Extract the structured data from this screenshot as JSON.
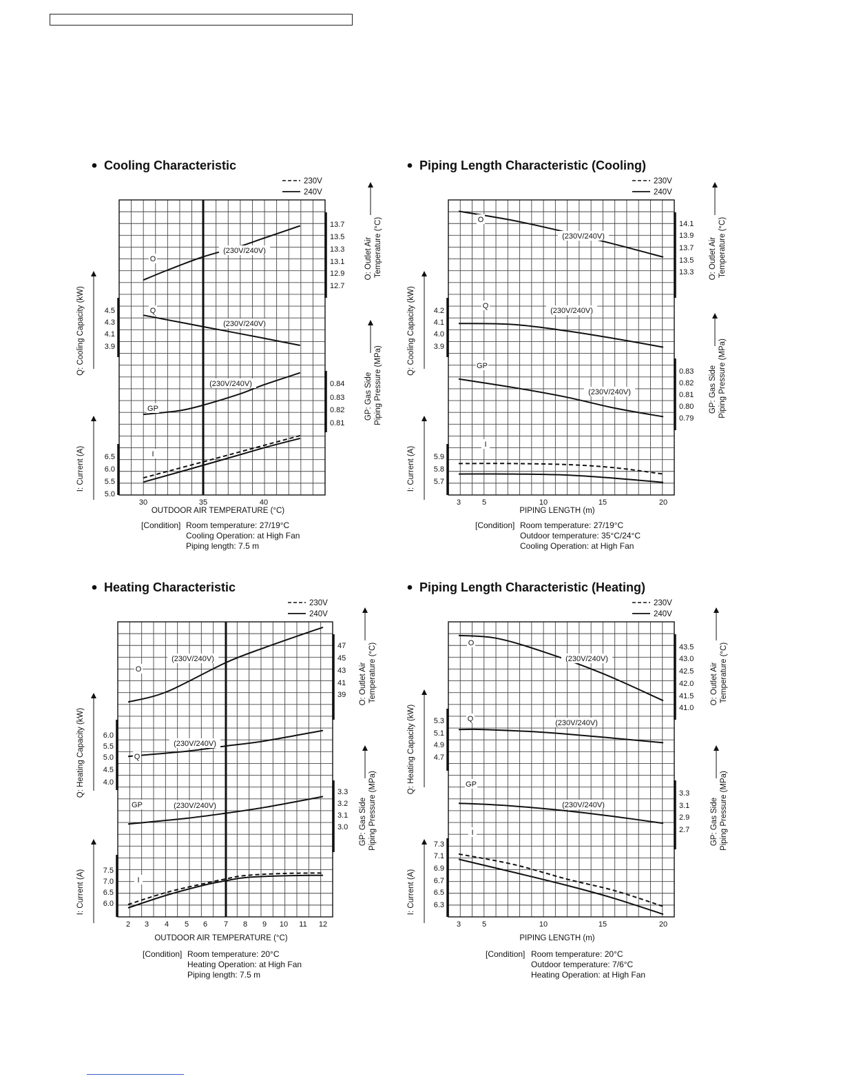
{
  "charts": [
    {
      "title": "Cooling Characteristic",
      "legend": [
        "230V",
        "240V"
      ],
      "x_axis": {
        "label": "OUTDOOR AIR TEMPERATURE (°C)",
        "ticks": [
          30,
          35,
          40
        ]
      },
      "condition_label": "[Condition]",
      "condition_lines": [
        "Room temperature: 27/19°C",
        "Cooling Operation: at High Fan",
        "Piping length: 7.5 m"
      ],
      "right_axes": [
        {
          "label": "O: Outlet Air Temperature (°C)",
          "lines": [
            "O: Outlet Air",
            "Temperature (°C)"
          ],
          "ticks": [
            "13.7",
            "13.5",
            "13.3",
            "13.1",
            "12.9",
            "12.7"
          ]
        },
        {
          "label": "GP: Gas Side Piping Pressure (MPa)",
          "lines": [
            "GP: Gas Side",
            "Piping Pressure (MPa)"
          ],
          "ticks": [
            "0.84",
            "0.83",
            "0.82",
            "0.81"
          ]
        }
      ],
      "left_axes": [
        {
          "label": "Q: Cooling Capacity (kW)",
          "ticks": [
            "4.5",
            "4.3",
            "4.1",
            "3.9"
          ]
        },
        {
          "label": "I: Current (A)",
          "ticks": [
            "6.5",
            "6.0",
            "5.5",
            "5.0"
          ]
        }
      ],
      "curve_labels": [
        "O",
        "(230V/240V)",
        "Q",
        "(230V/240V)",
        "GP",
        "(230V/240V)",
        "I"
      ]
    },
    {
      "title": "Piping Length Characteristic (Cooling)",
      "legend": [
        "230V",
        "240V"
      ],
      "x_axis": {
        "label": "PIPING LENGTH (m)",
        "ticks": [
          3,
          5,
          10,
          15,
          20
        ]
      },
      "condition_label": "[Condition]",
      "condition_lines": [
        "Room temperature: 27/19°C",
        "Outdoor temperature: 35°C/24°C",
        "Cooling Operation: at High Fan"
      ],
      "right_axes": [
        {
          "label": "O: Outlet Air Temperature (°C)",
          "lines": [
            "O: Outlet Air",
            "Temperature (°C)"
          ],
          "ticks": [
            "14.1",
            "13.9",
            "13.7",
            "13.5",
            "13.3"
          ]
        },
        {
          "label": "GP: Gas Side Piping Pressure (MPa)",
          "lines": [
            "GP: Gas Side",
            "Piping Pressure (MPa)"
          ],
          "ticks": [
            "0.83",
            "0.82",
            "0.81",
            "0.80",
            "0.79"
          ]
        }
      ],
      "left_axes": [
        {
          "label": "Q: Cooling Capacity (kW)",
          "ticks": [
            "4.2",
            "4.1",
            "4.0",
            "3.9"
          ]
        },
        {
          "label": "I: Current (A)",
          "ticks": [
            "5.9",
            "5.8",
            "5.7"
          ]
        }
      ],
      "curve_labels": [
        "O",
        "(230V/240V)",
        "Q",
        "(230V/240V)",
        "GP",
        "(230V/240V)",
        "I"
      ]
    },
    {
      "title": "Heating Characteristic",
      "legend": [
        "230V",
        "240V"
      ],
      "x_axis": {
        "label": "OUTDOOR AIR TEMPERATURE (°C)",
        "ticks": [
          2,
          3,
          4,
          5,
          6,
          7,
          8,
          9,
          10,
          11,
          12
        ]
      },
      "condition_label": "[Condition]",
      "condition_lines": [
        "Room temperature: 20°C",
        "Heating Operation: at High Fan",
        "Piping length: 7.5 m"
      ],
      "right_axes": [
        {
          "label": "O: Outlet Air Temperature (°C)",
          "lines": [
            "O: Outlet Air",
            "Temperature (°C)"
          ],
          "ticks": [
            "47",
            "45",
            "43",
            "41",
            "39"
          ]
        },
        {
          "label": "GP: Gas Side Piping Pressure (MPa)",
          "lines": [
            "GP: Gas Side",
            "Piping Pressure (MPa)"
          ],
          "ticks": [
            "3.3",
            "3.2",
            "3.1",
            "3.0"
          ]
        }
      ],
      "left_axes": [
        {
          "label": "Q: Heating Capacity (kW)",
          "ticks": [
            "6.0",
            "5.5",
            "5.0",
            "4.5",
            "4.0"
          ]
        },
        {
          "label": "I: Current (A)",
          "ticks": [
            "7.5",
            "7.0",
            "6.5",
            "6.0"
          ]
        }
      ],
      "curve_labels": [
        "(230V/240V)",
        "O",
        "(230V/240V)",
        "Q",
        "GP",
        "(230V/240V)",
        "I"
      ]
    },
    {
      "title": "Piping Length Characteristic (Heating)",
      "legend": [
        "230V",
        "240V"
      ],
      "x_axis": {
        "label": "PIPING LENGTH (m)",
        "ticks": [
          3,
          5,
          10,
          15,
          20
        ]
      },
      "condition_label": "[Condition]",
      "condition_lines": [
        "Room temperature: 20°C",
        "Outdoor temperature: 7/6°C",
        "Heating Operation: at High Fan"
      ],
      "right_axes": [
        {
          "label": "O: Outlet Air Temperature (°C)",
          "lines": [
            "O: Outlet Air",
            "Temperature (°C)"
          ],
          "ticks": [
            "43.5",
            "43.0",
            "42.5",
            "42.0",
            "41.5",
            "41.0"
          ]
        },
        {
          "label": "GP: Gas Side Piping Pressure (MPa)",
          "lines": [
            "GP: Gas Side",
            "Piping Pressure (MPa)"
          ],
          "ticks": [
            "3.3",
            "3.1",
            "2.9",
            "2.7"
          ]
        }
      ],
      "left_axes": [
        {
          "label": "Q: Heating Capacity (kW)",
          "ticks": [
            "5.3",
            "5.1",
            "4.9",
            "4.7"
          ]
        },
        {
          "label": "I: Current (A)",
          "ticks": [
            "7.3",
            "7.1",
            "6.9",
            "6.7",
            "6.5",
            "6.3"
          ]
        }
      ],
      "curve_labels": [
        "O",
        "(230V/240V)",
        "Q",
        "(230V/240V)",
        "GP",
        "(230V/240V)",
        "I"
      ]
    }
  ],
  "chart_data": [
    {
      "type": "line",
      "title": "Cooling Characteristic",
      "xlabel": "OUTDOOR AIR TEMPERATURE (°C)",
      "xlim": [
        28,
        45
      ],
      "series": [
        {
          "name": "O",
          "axis": "O: Outlet Air Temperature (°C)",
          "ylim": [
            12.4,
            14.4
          ],
          "x": [
            30,
            32,
            35,
            38,
            40,
            43
          ],
          "y": [
            12.85,
            13.04,
            13.3,
            13.5,
            13.66,
            13.9
          ]
        },
        {
          "name": "Q",
          "axis": "Q: Cooling Capacity (kW)",
          "ylim": [
            3.7,
            4.6
          ],
          "x": [
            30,
            35,
            40,
            43
          ],
          "y": [
            4.34,
            4.18,
            4.02,
            3.92
          ]
        },
        {
          "name": "GP",
          "axis": "GP: Gas Side Piping Pressure (MPa)",
          "ylim": [
            0.79,
            0.86
          ],
          "x": [
            30,
            33,
            35,
            38,
            40,
            43
          ],
          "y": [
            0.81,
            0.814,
            0.82,
            0.832,
            0.842,
            0.855
          ]
        },
        {
          "name": "I 230V",
          "axis": "I: Current (A)",
          "ylim": [
            5.0,
            6.5
          ],
          "x": [
            30,
            35,
            40,
            43
          ],
          "y": [
            5.49,
            5.95,
            6.42,
            6.7
          ]
        },
        {
          "name": "I 240V",
          "axis": "I: Current (A)",
          "ylim": [
            5.0,
            6.5
          ],
          "x": [
            30,
            35,
            40,
            43
          ],
          "y": [
            5.37,
            5.85,
            6.35,
            6.62
          ]
        }
      ]
    },
    {
      "type": "line",
      "title": "Piping Length Characteristic (Cooling)",
      "xlabel": "PIPING LENGTH (m)",
      "xlim": [
        2,
        21
      ],
      "series": [
        {
          "name": "O",
          "axis": "O: Outlet Air Temperature (°C)",
          "ylim": [
            12.4,
            14.5
          ],
          "x": [
            3,
            7.5,
            12,
            16,
            20
          ],
          "y": [
            14.27,
            14.08,
            13.84,
            13.6,
            13.34
          ]
        },
        {
          "name": "Q",
          "axis": "Q: Cooling Capacity (kW)",
          "ylim": [
            3.8,
            4.4
          ],
          "x": [
            3,
            7.5,
            12,
            16,
            20
          ],
          "y": [
            4.15,
            4.14,
            4.08,
            4.01,
            3.93
          ]
        },
        {
          "name": "GP",
          "axis": "GP: Gas Side Piping Pressure (MPa)",
          "ylim": [
            0.78,
            0.84
          ],
          "x": [
            3,
            7.5,
            12,
            16,
            20
          ],
          "y": [
            0.83,
            0.822,
            0.813,
            0.803,
            0.795
          ]
        },
        {
          "name": "I 230V",
          "axis": "I: Current (A)",
          "ylim": [
            5.6,
            6.1
          ],
          "x": [
            3,
            7.5,
            12,
            16,
            20
          ],
          "y": [
            5.9,
            5.9,
            5.89,
            5.86,
            5.8
          ]
        },
        {
          "name": "I 240V",
          "axis": "I: Current (A)",
          "ylim": [
            5.6,
            6.1
          ],
          "x": [
            3,
            7.5,
            12,
            16,
            20
          ],
          "y": [
            5.8,
            5.8,
            5.79,
            5.76,
            5.72
          ]
        }
      ]
    },
    {
      "type": "line",
      "title": "Heating Characteristic",
      "xlabel": "OUTDOOR AIR TEMPERATURE (°C)",
      "xlim": [
        1.5,
        12.5
      ],
      "series": [
        {
          "name": "O",
          "axis": "O: Outlet Air Temperature (°C)",
          "ylim": [
            35,
            49
          ],
          "x": [
            2,
            4,
            7,
            9,
            12
          ],
          "y": [
            37.2,
            38.7,
            43.0,
            45.2,
            48.2
          ]
        },
        {
          "name": "Q",
          "axis": "Q: Heating Capacity (kW)",
          "ylim": [
            3.0,
            6.5
          ],
          "x": [
            2,
            5,
            7,
            9,
            12
          ],
          "y": [
            4.52,
            4.8,
            5.08,
            5.35,
            5.92
          ]
        },
        {
          "name": "GP",
          "axis": "GP: Gas Side Piping Pressure (MPa)",
          "ylim": [
            2.6,
            3.4
          ],
          "x": [
            2,
            5,
            7,
            9,
            12
          ],
          "y": [
            2.93,
            3.01,
            3.08,
            3.16,
            3.31
          ]
        },
        {
          "name": "I 230V",
          "axis": "I: Current (A)",
          "ylim": [
            5.6,
            8.0
          ],
          "x": [
            2,
            4,
            6,
            7,
            8,
            10,
            12
          ],
          "y": [
            6.08,
            6.55,
            6.9,
            7.07,
            7.2,
            7.28,
            7.3
          ]
        },
        {
          "name": "I 240V",
          "axis": "I: Current (A)",
          "ylim": [
            5.6,
            8.0
          ],
          "x": [
            2,
            4,
            6,
            7,
            8,
            10,
            12
          ],
          "y": [
            5.95,
            6.44,
            6.84,
            7.0,
            7.12,
            7.19,
            7.21
          ]
        }
      ]
    },
    {
      "type": "line",
      "title": "Piping Length Characteristic (Heating)",
      "xlabel": "PIPING LENGTH (m)",
      "xlim": [
        2,
        21
      ],
      "series": [
        {
          "name": "O",
          "axis": "O: Outlet Air Temperature (°C)",
          "ylim": [
            40.5,
            44.0
          ],
          "x": [
            3,
            6,
            10,
            15,
            20
          ],
          "y": [
            43.5,
            43.4,
            42.9,
            42.1,
            41.1
          ]
        },
        {
          "name": "Q",
          "axis": "Q: Heating Capacity (kW)",
          "ylim": [
            4.0,
            5.5
          ],
          "x": [
            3,
            5,
            10,
            15,
            20
          ],
          "y": [
            5.22,
            5.22,
            5.14,
            5.0,
            4.84
          ]
        },
        {
          "name": "GP",
          "axis": "GP: Gas Side Piping Pressure (MPa)",
          "ylim": [
            2.5,
            3.6
          ],
          "x": [
            3,
            7,
            12,
            16,
            20
          ],
          "y": [
            3.12,
            3.07,
            2.96,
            2.84,
            2.7
          ]
        },
        {
          "name": "I 230V",
          "axis": "I: Current (A)",
          "ylim": [
            6.1,
            7.6
          ],
          "x": [
            3,
            7.5,
            12,
            16,
            20
          ],
          "y": [
            7.3,
            7.1,
            6.82,
            6.6,
            6.3
          ]
        },
        {
          "name": "I 240V",
          "axis": "I: Current (A)",
          "ylim": [
            6.1,
            7.6
          ],
          "x": [
            3,
            7.5,
            12,
            16,
            20
          ],
          "y": [
            7.2,
            6.95,
            6.7,
            6.45,
            6.15
          ]
        }
      ]
    }
  ]
}
